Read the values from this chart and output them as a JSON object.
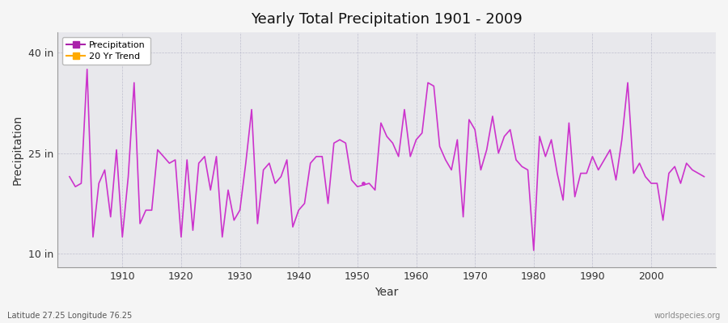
{
  "title": "Yearly Total Precipitation 1901 - 2009",
  "xlabel": "Year",
  "ylabel": "Precipitation",
  "ytick_labels": [
    "10 in",
    "25 in",
    "40 in"
  ],
  "ytick_values": [
    10,
    25,
    40
  ],
  "ylim": [
    8,
    43
  ],
  "xlim": [
    1899,
    2011
  ],
  "plot_bg_color": "#e8e8ec",
  "fig_bg_color": "#f5f5f5",
  "line_color": "#cc33cc",
  "legend_precip_color": "#aa22aa",
  "legend_trend_color": "#ffaa00",
  "footer_left": "Latitude 27.25 Longitude 76.25",
  "footer_right": "worldspecies.org",
  "years": [
    1901,
    1902,
    1903,
    1904,
    1905,
    1906,
    1907,
    1908,
    1909,
    1910,
    1911,
    1912,
    1913,
    1914,
    1915,
    1916,
    1917,
    1918,
    1919,
    1920,
    1921,
    1922,
    1923,
    1924,
    1925,
    1926,
    1927,
    1928,
    1929,
    1930,
    1931,
    1932,
    1933,
    1934,
    1935,
    1936,
    1937,
    1938,
    1939,
    1940,
    1941,
    1942,
    1943,
    1944,
    1945,
    1946,
    1947,
    1948,
    1949,
    1950,
    1952,
    1953,
    1954,
    1955,
    1956,
    1957,
    1958,
    1959,
    1960,
    1961,
    1962,
    1963,
    1964,
    1965,
    1966,
    1967,
    1968,
    1969,
    1970,
    1971,
    1972,
    1973,
    1974,
    1975,
    1976,
    1977,
    1978,
    1979,
    1980,
    1981,
    1982,
    1983,
    1984,
    1985,
    1986,
    1987,
    1988,
    1989,
    1990,
    1991,
    1992,
    1993,
    1994,
    1995,
    1996,
    1997,
    1998,
    1999,
    2000,
    2001,
    2002,
    2003,
    2004,
    2005,
    2006,
    2007,
    2008,
    2009
  ],
  "precip": [
    21.5,
    20.0,
    20.5,
    37.5,
    12.5,
    20.5,
    22.5,
    15.5,
    25.5,
    12.5,
    21.5,
    35.5,
    14.5,
    16.5,
    16.5,
    25.5,
    24.5,
    23.5,
    24.0,
    12.5,
    24.0,
    13.5,
    23.5,
    24.5,
    19.5,
    24.5,
    12.5,
    19.5,
    15.0,
    16.5,
    23.5,
    31.5,
    14.5,
    22.5,
    23.5,
    20.5,
    21.5,
    24.0,
    14.0,
    16.5,
    17.5,
    23.5,
    24.5,
    24.5,
    17.5,
    26.5,
    27.0,
    26.5,
    21.0,
    20.0,
    20.5,
    19.5,
    29.5,
    27.5,
    26.5,
    24.5,
    31.5,
    24.5,
    27.0,
    28.0,
    35.5,
    35.0,
    26.0,
    24.0,
    22.5,
    27.0,
    15.5,
    30.0,
    28.5,
    22.5,
    25.5,
    30.5,
    25.0,
    27.5,
    28.5,
    24.0,
    23.0,
    22.5,
    10.5,
    27.5,
    24.5,
    27.0,
    22.0,
    18.0,
    29.5,
    18.5,
    22.0,
    22.0,
    24.5,
    22.5,
    24.0,
    25.5,
    21.0,
    27.0,
    35.5,
    22.0,
    23.5,
    21.5,
    20.5,
    20.5,
    15.0,
    22.0,
    23.0,
    20.5,
    23.5,
    22.5,
    22.0,
    21.5
  ],
  "isolated_dot_year": 1951,
  "isolated_dot_val": 20.5,
  "xticks": [
    1910,
    1920,
    1930,
    1940,
    1950,
    1960,
    1970,
    1980,
    1990,
    2000
  ]
}
